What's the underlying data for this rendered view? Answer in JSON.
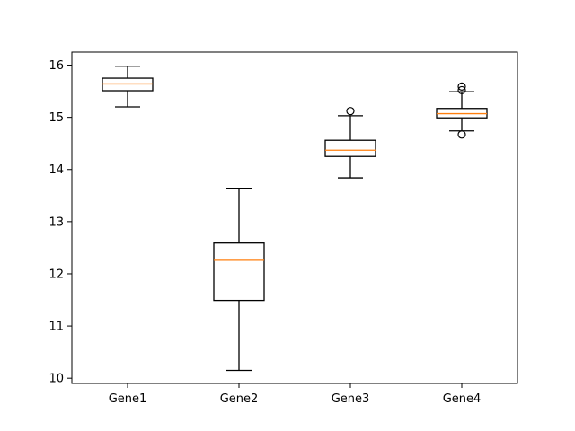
{
  "chart_data": {
    "type": "boxplot",
    "categories": [
      "Gene1",
      "Gene2",
      "Gene3",
      "Gene4"
    ],
    "boxes": [
      {
        "label": "Gene1",
        "whisker_low": 15.2,
        "q1": 15.51,
        "median": 15.64,
        "q3": 15.75,
        "whisker_high": 15.98,
        "outliers": []
      },
      {
        "label": "Gene2",
        "whisker_low": 10.15,
        "q1": 11.49,
        "median": 12.26,
        "q3": 12.59,
        "whisker_high": 13.64,
        "outliers": []
      },
      {
        "label": "Gene3",
        "whisker_low": 13.84,
        "q1": 14.25,
        "median": 14.37,
        "q3": 14.56,
        "whisker_high": 15.03,
        "outliers": [
          15.12
        ]
      },
      {
        "label": "Gene4",
        "whisker_low": 14.74,
        "q1": 14.99,
        "median": 15.07,
        "q3": 15.17,
        "whisker_high": 15.49,
        "outliers": [
          15.59,
          15.52,
          14.67
        ]
      }
    ],
    "y_ticks": [
      10,
      11,
      12,
      13,
      14,
      15,
      16
    ],
    "ylim": [
      9.9,
      16.25
    ],
    "grid": false,
    "colors": {
      "box": "#000000",
      "median": "#ff7f0e",
      "outlier": "#000000"
    }
  }
}
